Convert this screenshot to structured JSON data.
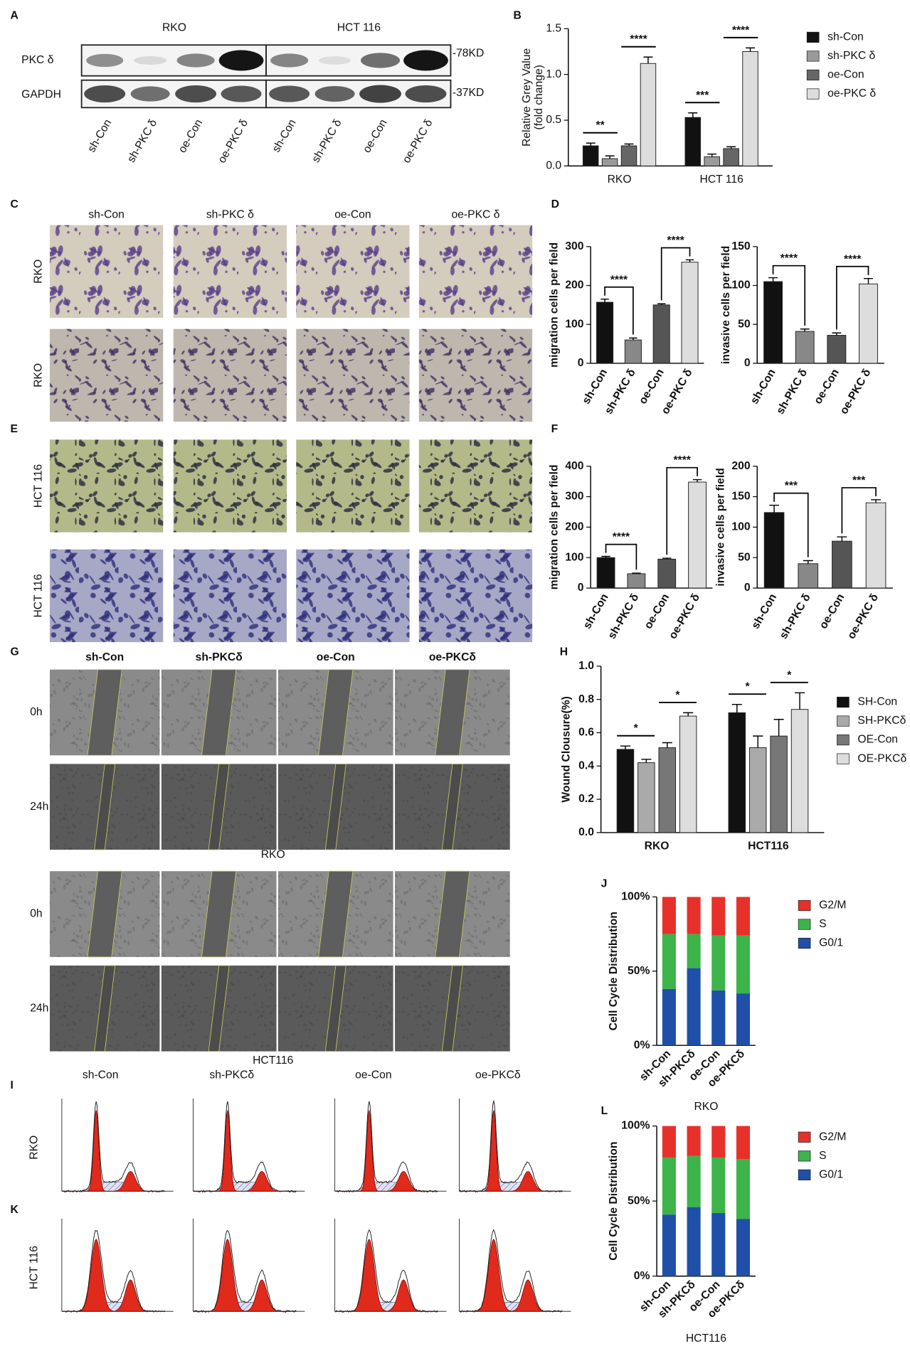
{
  "figure": {
    "panel_labels": [
      "A",
      "B",
      "C",
      "D",
      "E",
      "F",
      "G",
      "H",
      "J",
      "I",
      "K",
      "L"
    ],
    "blot": {
      "cell_lines": [
        "RKO",
        "HCT 116"
      ],
      "proteins": [
        "PKC δ",
        "GAPDH"
      ],
      "sizes": [
        "-78KD",
        "-37KD"
      ],
      "lanes": [
        "sh-Con",
        "sh-PKC δ",
        "oe-Con",
        "oe-PKC δ",
        "sh-Con",
        "sh-PKC δ",
        "oe-Con",
        "oe-PKC δ"
      ]
    },
    "transwell": {
      "columns": [
        "sh-Con",
        "sh-PKC δ",
        "oe-Con",
        "oe-PKC δ"
      ],
      "rows": [
        "RKO",
        "RKO",
        "HCT 116",
        "HCT 116"
      ]
    },
    "wound": {
      "columns": [
        "sh-Con",
        "sh-PKCδ",
        "oe-Con",
        "oe-PKCδ"
      ],
      "rows": [
        "0h",
        "24h",
        "0h",
        "24h"
      ],
      "captions": [
        "RKO",
        "HCT116"
      ]
    },
    "flow": {
      "columns": [
        "sh-Con",
        "sh-PKCδ",
        "oe-Con",
        "oe-PKCδ"
      ],
      "rows": [
        "RKO",
        "HCT 116"
      ]
    }
  },
  "chart_data": [
    {
      "type": "bar",
      "ylabel": [
        "Relative Grey Value",
        "(fold change)"
      ],
      "categories": [
        "RKO",
        "HCT 116"
      ],
      "series": [
        {
          "name": "sh-Con",
          "color": "#111111",
          "values": [
            0.22,
            0.53
          ],
          "errors": [
            0.03,
            0.05
          ]
        },
        {
          "name": "sh-PKC δ",
          "color": "#9a9a9a",
          "values": [
            0.08,
            0.1
          ],
          "errors": [
            0.03,
            0.03
          ]
        },
        {
          "name": "oe-Con",
          "color": "#666666",
          "values": [
            0.22,
            0.19
          ],
          "errors": [
            0.02,
            0.02
          ]
        },
        {
          "name": "oe-PKC δ",
          "color": "#dddddd",
          "values": [
            1.12,
            1.25
          ],
          "errors": [
            0.07,
            0.04
          ]
        }
      ],
      "ylim": [
        0,
        1.5
      ],
      "yticks": [
        {
          "value": 0,
          "label": "0.0"
        },
        0.5,
        {
          "value": 1,
          "label": "1.0"
        },
        1.5
      ],
      "annotations": [
        "**",
        "****",
        "***",
        "****"
      ]
    },
    {
      "type": "bar",
      "ylabel": "migration cells per field",
      "categories": [
        "sh-Con",
        "sh-PKC δ",
        "oe-Con",
        "oe-PKC δ"
      ],
      "values": [
        157,
        60,
        150,
        260
      ],
      "errors": [
        8,
        5,
        3,
        6
      ],
      "colors": [
        "#111111",
        "#888888",
        "#555555",
        "#dddddd"
      ],
      "ylim": [
        0,
        300
      ],
      "yticks": [
        0,
        100,
        200,
        300
      ],
      "annotations": [
        "****",
        "****"
      ]
    },
    {
      "type": "bar",
      "ylabel": "invasive cells per field",
      "categories": [
        "sh-Con",
        "sh-PKC δ",
        "oe-Con",
        "oe-PKC δ"
      ],
      "values": [
        105,
        41,
        36,
        102
      ],
      "errors": [
        5,
        3,
        3,
        7
      ],
      "colors": [
        "#111111",
        "#888888",
        "#555555",
        "#dddddd"
      ],
      "ylim": [
        0,
        150
      ],
      "yticks": [
        0,
        50,
        100,
        150
      ],
      "annotations": [
        "****",
        "****"
      ]
    },
    {
      "type": "bar",
      "ylabel": "migration cells per field",
      "categories": [
        "sh-Con",
        "sh-PKC δ",
        "oe-Con",
        "oe-PKC δ"
      ],
      "values": [
        100,
        47,
        95,
        348
      ],
      "errors": [
        4,
        2,
        3,
        8
      ],
      "colors": [
        "#111111",
        "#888888",
        "#555555",
        "#dddddd"
      ],
      "ylim": [
        0,
        400
      ],
      "yticks": [
        0,
        100,
        200,
        300,
        400
      ],
      "annotations": [
        "****",
        "****"
      ]
    },
    {
      "type": "bar",
      "ylabel": "invasive cells per field",
      "categories": [
        "sh-Con",
        "sh-PKC δ",
        "oe-Con",
        "oe-PKC δ"
      ],
      "values": [
        124,
        40,
        77,
        140
      ],
      "errors": [
        12,
        5,
        7,
        5
      ],
      "colors": [
        "#111111",
        "#888888",
        "#555555",
        "#dddddd"
      ],
      "ylim": [
        0,
        200
      ],
      "yticks": [
        0,
        50,
        100,
        150,
        200
      ],
      "annotations": [
        "***",
        "***"
      ]
    },
    {
      "type": "bar",
      "ylabel": "Wound Clousure(%)",
      "categories": [
        "RKO",
        "HCT116"
      ],
      "series": [
        {
          "name": "SH-Con",
          "color": "#111111",
          "values": [
            0.5,
            0.72
          ],
          "errors": [
            0.02,
            0.05
          ]
        },
        {
          "name": "SH-PKCδ",
          "color": "#aaaaaa",
          "values": [
            0.42,
            0.51
          ],
          "errors": [
            0.02,
            0.07
          ]
        },
        {
          "name": "OE-Con",
          "color": "#777777",
          "values": [
            0.51,
            0.58
          ],
          "errors": [
            0.03,
            0.1
          ]
        },
        {
          "name": "OE-PKCδ",
          "color": "#dddddd",
          "values": [
            0.7,
            0.74
          ],
          "errors": [
            0.02,
            0.1
          ]
        }
      ],
      "ylim": [
        0,
        1
      ],
      "yticks": [
        {
          "value": 0,
          "label": "0.0"
        },
        0.2,
        0.4,
        0.6,
        0.8,
        {
          "value": 1,
          "label": "1.0"
        }
      ],
      "annotations": [
        "*",
        "*",
        "*",
        "*"
      ]
    },
    {
      "type": "stacked-bar",
      "ylabel": "Cell Cycle Distribution",
      "xlabel": "RKO",
      "categories": [
        "sh-Con",
        "sh-PKCδ",
        "oe-Con",
        "oe-PKCδ"
      ],
      "series": [
        {
          "name": "G2/M",
          "color": "#e8302a",
          "values": [
            25,
            25,
            26,
            26
          ]
        },
        {
          "name": "S",
          "color": "#3cb44a",
          "values": [
            37,
            23,
            37,
            39
          ]
        },
        {
          "name": "G0/1",
          "color": "#1f4fa8",
          "values": [
            38,
            52,
            37,
            35
          ]
        }
      ],
      "ylim": [
        0,
        100
      ],
      "yticks": [
        {
          "value": 0,
          "label": "0%"
        },
        {
          "value": 50,
          "label": "50%"
        },
        {
          "value": 100,
          "label": "100%"
        }
      ]
    },
    {
      "type": "stacked-bar",
      "ylabel": "Cell Cycle Distribution",
      "xlabel": "HCT116",
      "categories": [
        "sh-Con",
        "sh-PKCδ",
        "oe-Con",
        "oe-PKCδ"
      ],
      "series": [
        {
          "name": "G2/M",
          "color": "#e8302a",
          "values": [
            21,
            20,
            21,
            22
          ]
        },
        {
          "name": "S",
          "color": "#3cb44a",
          "values": [
            38,
            34,
            37,
            40
          ]
        },
        {
          "name": "G0/1",
          "color": "#1f4fa8",
          "values": [
            41,
            46,
            42,
            38
          ]
        }
      ],
      "ylim": [
        0,
        100
      ],
      "yticks": [
        {
          "value": 0,
          "label": "0%"
        },
        {
          "value": 50,
          "label": "50%"
        },
        {
          "value": 100,
          "label": "100%"
        }
      ]
    }
  ]
}
